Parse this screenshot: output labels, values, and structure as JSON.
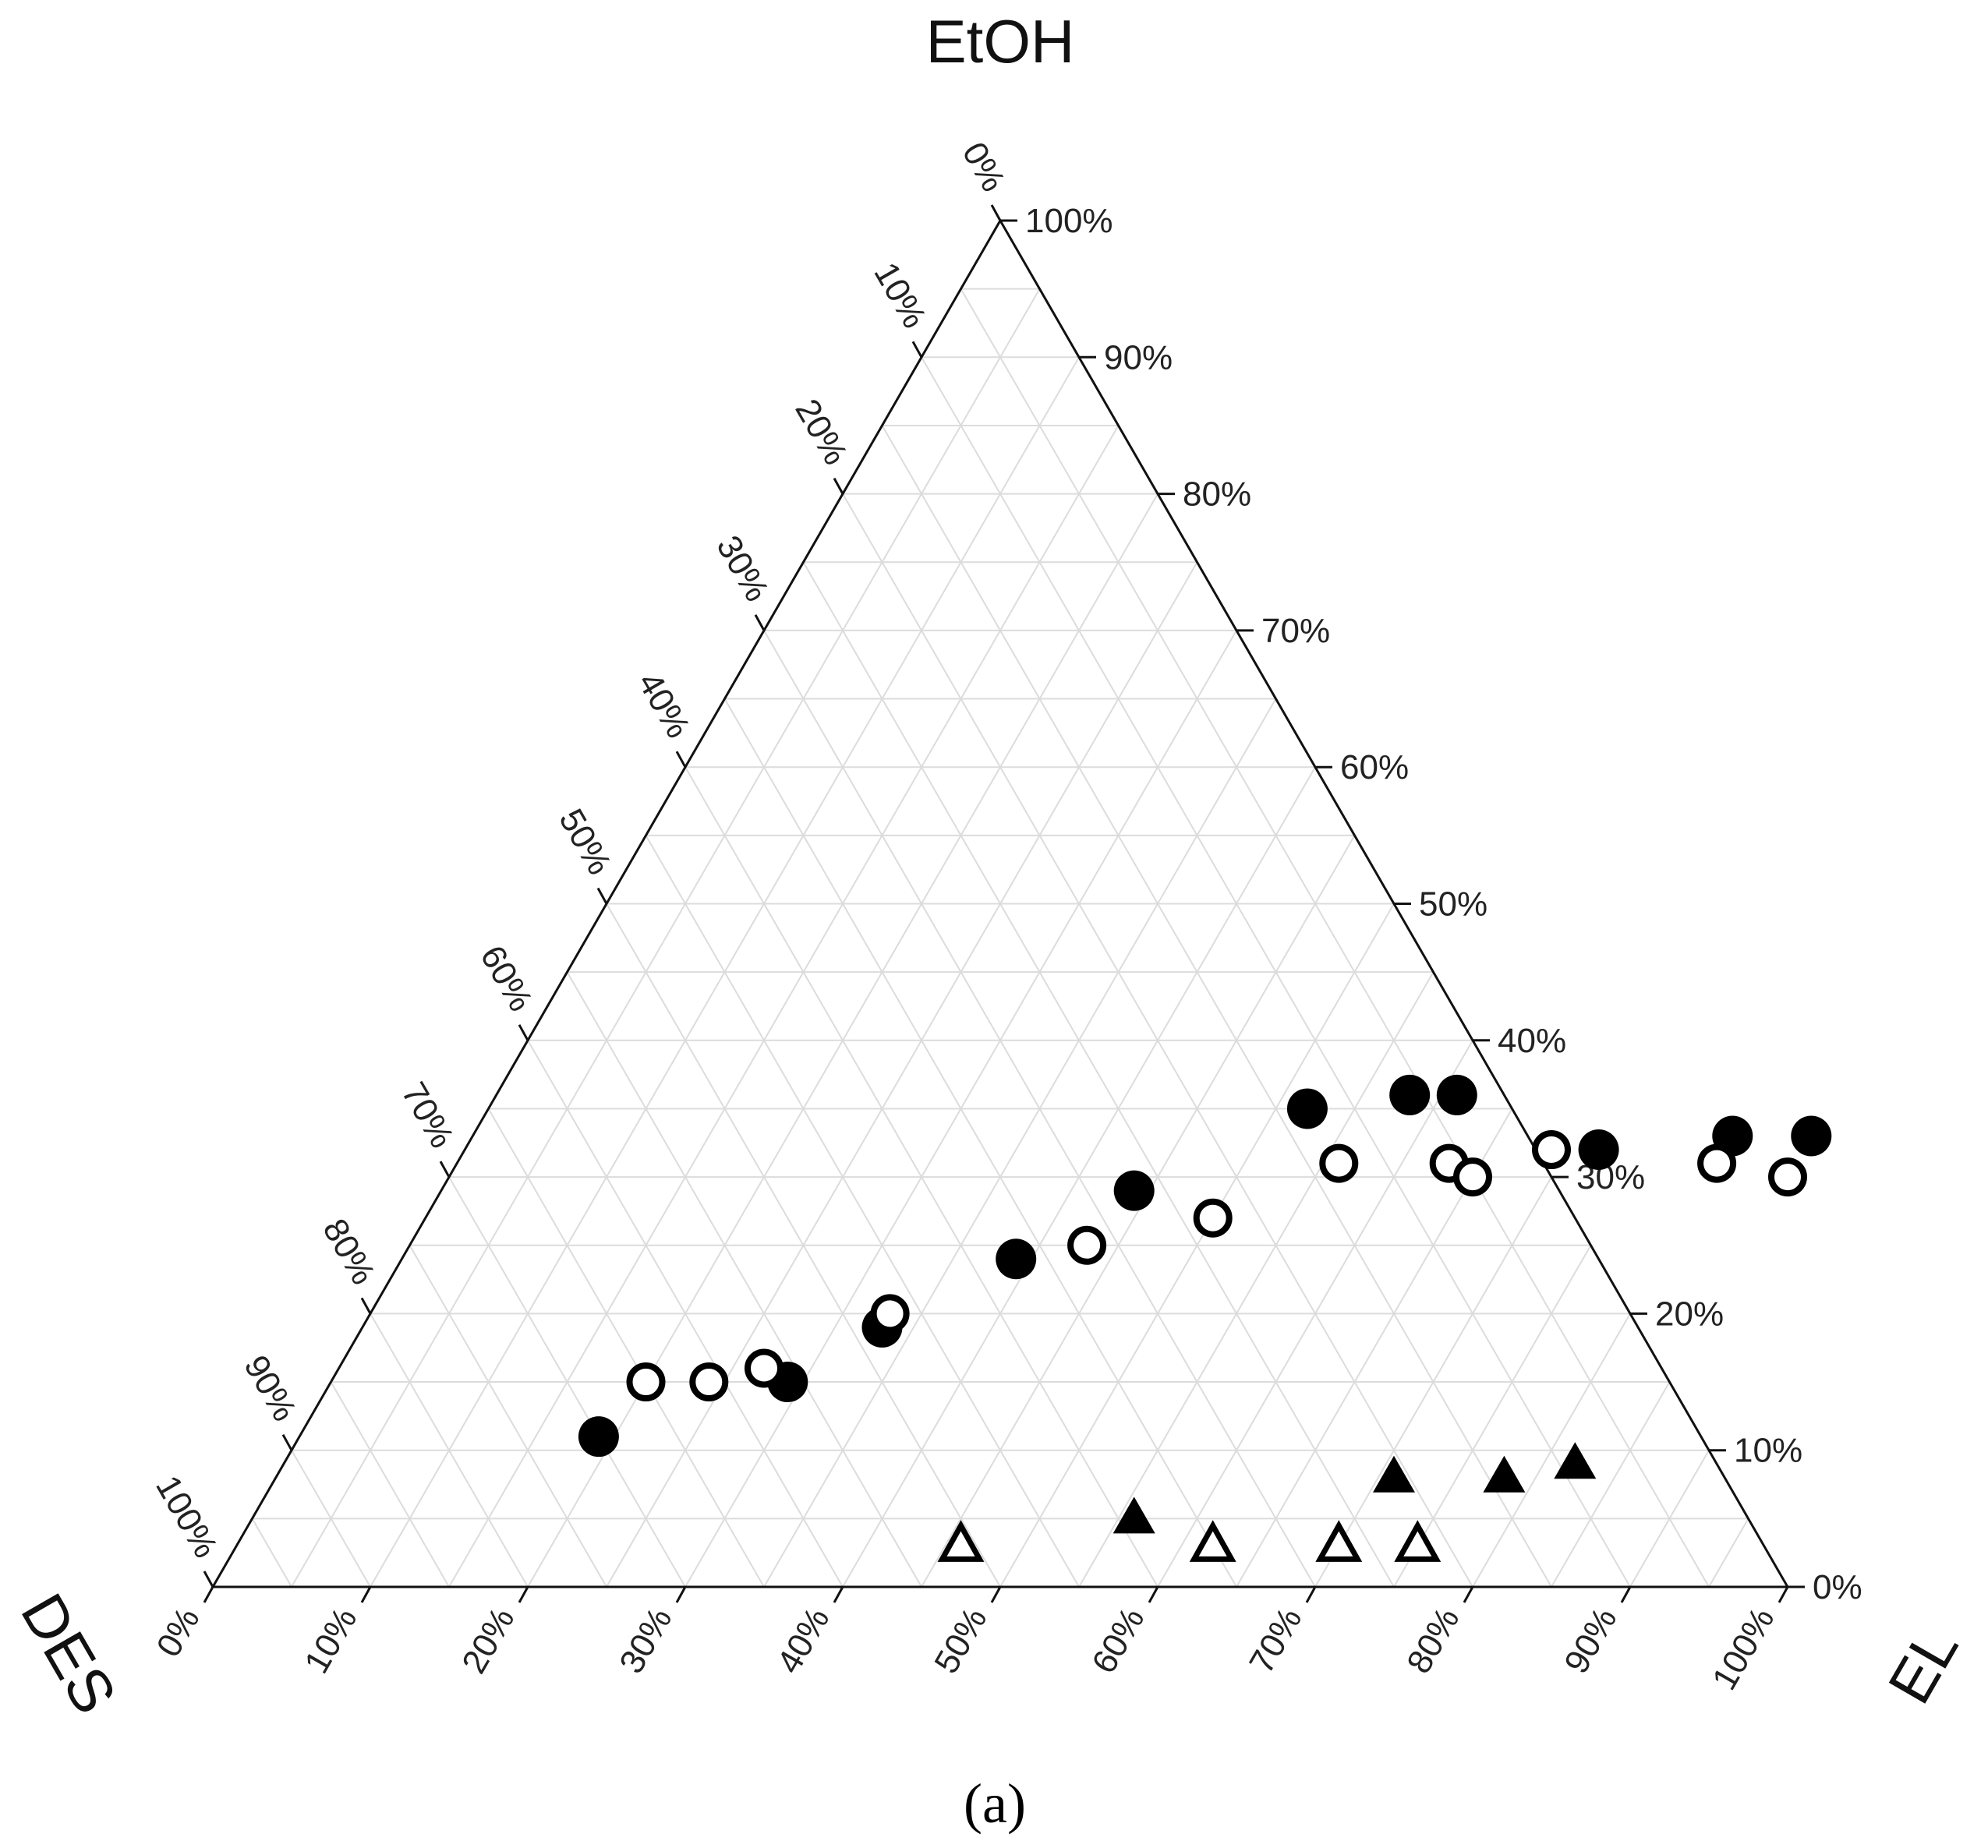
{
  "chart_data": {
    "type": "scatter",
    "subtype": "ternary",
    "axes": {
      "top": {
        "title": "EtOH"
      },
      "left": {
        "title": "DES"
      },
      "right": {
        "title": "EL"
      }
    },
    "ticks": [
      "0%",
      "10%",
      "20%",
      "30%",
      "40%",
      "50%",
      "60%",
      "70%",
      "80%",
      "90%",
      "100%"
    ],
    "grid": true,
    "grid_step": 5,
    "caption": "(a)",
    "series": [
      {
        "marker": "filled-circle",
        "points": [
          {
            "el": 19,
            "etoh": 11
          },
          {
            "el": 29,
            "etoh": 15
          },
          {
            "el": 33,
            "etoh": 19
          },
          {
            "el": 39,
            "etoh": 24
          },
          {
            "el": 44,
            "etoh": 29
          },
          {
            "el": 52,
            "etoh": 35
          },
          {
            "el": 58,
            "etoh": 36
          },
          {
            "el": 61,
            "etoh": 36
          },
          {
            "el": 72,
            "etoh": 32
          },
          {
            "el": 80,
            "etoh": 33
          },
          {
            "el": 85,
            "etoh": 33
          }
        ]
      },
      {
        "marker": "open-circle",
        "points": [
          {
            "el": 20,
            "etoh": 15
          },
          {
            "el": 24,
            "etoh": 15
          },
          {
            "el": 27,
            "etoh": 16
          },
          {
            "el": 33,
            "etoh": 20
          },
          {
            "el": 43,
            "etoh": 25
          },
          {
            "el": 50,
            "etoh": 27
          },
          {
            "el": 56,
            "etoh": 31
          },
          {
            "el": 63,
            "etoh": 31
          },
          {
            "el": 65,
            "etoh": 30
          },
          {
            "el": 69,
            "etoh": 32
          },
          {
            "el": 80,
            "etoh": 31
          },
          {
            "el": 85,
            "etoh": 30
          }
        ]
      },
      {
        "marker": "filled-triangle",
        "points": [
          {
            "el": 56,
            "etoh": 5
          },
          {
            "el": 71,
            "etoh": 8
          },
          {
            "el": 78,
            "etoh": 8
          },
          {
            "el": 82,
            "etoh": 9
          }
        ]
      },
      {
        "marker": "open-triangle",
        "points": [
          {
            "el": 46,
            "etoh": 3
          },
          {
            "el": 62,
            "etoh": 3
          },
          {
            "el": 70,
            "etoh": 3
          },
          {
            "el": 75,
            "etoh": 3
          }
        ]
      }
    ]
  }
}
